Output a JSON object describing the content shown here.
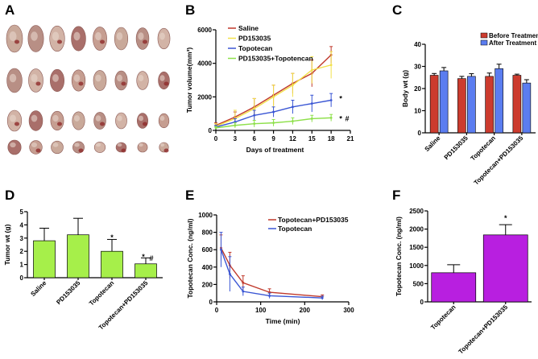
{
  "panels": {
    "A": "A",
    "B": "B",
    "C": "C",
    "D": "D",
    "E": "E",
    "F": "F"
  },
  "colors": {
    "saline": "#c0392b",
    "pd153035": "#f2e14a",
    "topotecan": "#3a56d4",
    "combo": "#8ee04a",
    "bar_before": "#cc3b2e",
    "bar_after": "#5b7df0",
    "bar_green": "#a6ef4a",
    "bar_purple": "#b81fe0"
  },
  "photo_tumor_rows": [
    8,
    8,
    8,
    8
  ],
  "chart_data": [
    {
      "panel": "B",
      "type": "line",
      "xlabel": "Days of treatment",
      "ylabel": "Tumor volume(mm³)",
      "x": [
        0,
        3,
        6,
        9,
        12,
        15,
        18
      ],
      "xticks": [
        0,
        3,
        6,
        9,
        12,
        15,
        18,
        21
      ],
      "yticks": [
        0,
        2000,
        4000,
        6000
      ],
      "xlim": [
        0,
        21
      ],
      "ylim": [
        0,
        6000
      ],
      "series": [
        {
          "name": "Saline",
          "color_key": "saline",
          "values": [
            300,
            800,
            1400,
            2100,
            2800,
            3400,
            4500
          ],
          "err": [
            150,
            300,
            500,
            600,
            600,
            800,
            500
          ]
        },
        {
          "name": "PD153035",
          "color_key": "pd153035",
          "values": [
            250,
            700,
            1300,
            2000,
            2700,
            3600,
            3900
          ],
          "err": [
            150,
            500,
            600,
            700,
            700,
            800,
            800
          ]
        },
        {
          "name": "Topotecan",
          "color_key": "topotecan",
          "values": [
            200,
            500,
            900,
            1100,
            1400,
            1600,
            1800
          ],
          "err": [
            100,
            200,
            300,
            300,
            400,
            500,
            400
          ]
        },
        {
          "name": "PD153035+Topotencan",
          "color_key": "combo",
          "values": [
            150,
            300,
            400,
            450,
            550,
            700,
            750
          ],
          "err": [
            80,
            150,
            200,
            200,
            200,
            200,
            200
          ]
        }
      ],
      "annotations": [
        {
          "text": "*",
          "x": 19.5,
          "y": 1900
        },
        {
          "text": "*",
          "x": 19.5,
          "y": 700
        },
        {
          "text": "#",
          "x": 20.5,
          "y": 700
        }
      ]
    },
    {
      "panel": "C",
      "type": "bar",
      "ylabel": "Body wt (g)",
      "categories": [
        "Saline",
        "PD153035",
        "Topotecan",
        "Topotecan+PD153035"
      ],
      "yticks": [
        0,
        10,
        20,
        30,
        40
      ],
      "ylim": [
        0,
        40
      ],
      "legend": "top-right",
      "series": [
        {
          "name": "Before Treatment",
          "color_key": "bar_before",
          "values": [
            26,
            24.5,
            25.5,
            26
          ],
          "err": [
            0.8,
            1.0,
            1.5,
            0.5
          ]
        },
        {
          "name": "After Treatment",
          "color_key": "bar_after",
          "values": [
            28,
            25.5,
            29,
            22.5
          ],
          "err": [
            1.5,
            1.2,
            2.0,
            1.5
          ]
        }
      ]
    },
    {
      "panel": "D",
      "type": "bar",
      "ylabel": "Tumor wt (g)",
      "categories": [
        "Saline",
        "PD153035",
        "Topotecan",
        "Topotecan+PD153035"
      ],
      "yticks": [
        "0",
        "1",
        "2",
        "3",
        "4",
        "5"
      ],
      "ylim": [
        0,
        5
      ],
      "values": [
        2.8,
        3.25,
        2.0,
        1.05
      ],
      "err": [
        0.95,
        1.25,
        0.9,
        0.45
      ],
      "annotations": [
        {
          "text": "*",
          "category": 2,
          "y": 3.05
        },
        {
          "text": "*",
          "category": 3,
          "y": 1.6
        },
        {
          "text": "#",
          "category": 3,
          "y": 1.45
        }
      ]
    },
    {
      "panel": "E",
      "type": "line",
      "xlabel": "Time (min)",
      "ylabel": "Topotecan Conc. (ng/ml)",
      "xticks": [
        0,
        100,
        200,
        300
      ],
      "yticks": [
        0,
        200,
        400,
        600,
        800,
        1000
      ],
      "xlim": [
        0,
        300
      ],
      "ylim": [
        0,
        1000
      ],
      "x": [
        10,
        30,
        60,
        120,
        240
      ],
      "legend": "top-right",
      "series": [
        {
          "name": "Topotecan+PD153035",
          "color_key": "saline",
          "values": [
            620,
            420,
            220,
            110,
            60
          ],
          "err": [
            150,
            150,
            80,
            40,
            20
          ]
        },
        {
          "name": "Topotecan",
          "color_key": "topotecan",
          "values": [
            600,
            320,
            120,
            70,
            45
          ],
          "err": [
            200,
            200,
            50,
            30,
            20
          ]
        }
      ]
    },
    {
      "panel": "F",
      "type": "bar",
      "ylabel": "Topotecan Conc. (ng/ml)",
      "categories": [
        "Topotecan",
        "Topotecan+PD153035"
      ],
      "yticks": [
        0,
        500,
        1000,
        1500,
        2000,
        2500
      ],
      "ylim": [
        0,
        2500
      ],
      "values": [
        800,
        1840
      ],
      "err": [
        220,
        280
      ],
      "annotations": [
        {
          "text": "*",
          "category": 1,
          "y": 2300
        }
      ]
    }
  ]
}
